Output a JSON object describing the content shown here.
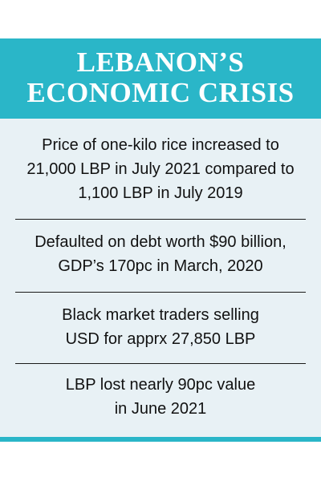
{
  "panel": {
    "title_line1": "LEBANON’S",
    "title_line2": "ECONOMIC CRISIS",
    "accent_color": "#2ab6c8",
    "background_color": "#e8f1f5"
  },
  "facts": [
    {
      "lines": [
        "Price of one-kilo rice increased to",
        "21,000 LBP in July 2021 compared to",
        "1,100 LBP in July 2019"
      ]
    },
    {
      "lines": [
        "Defaulted on debt worth $90 billion,",
        "GDP’s 170pc in March, 2020"
      ]
    },
    {
      "lines": [
        "Black market traders selling",
        "USD for apprx 27,850 LBP"
      ]
    },
    {
      "lines": [
        "LBP lost nearly 90pc value",
        "in June 2021"
      ]
    }
  ]
}
